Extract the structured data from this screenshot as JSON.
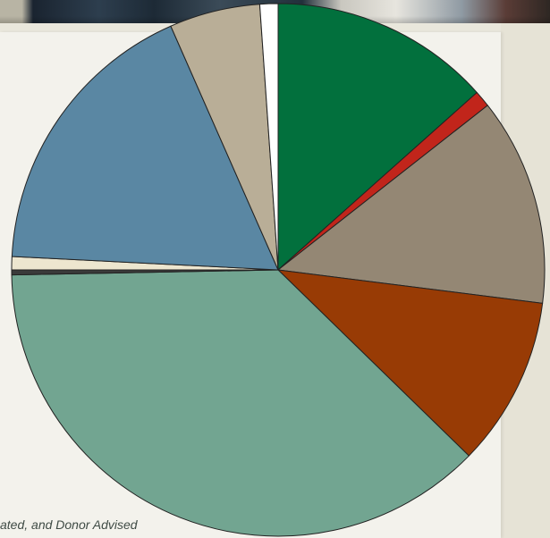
{
  "caption": "ated, and Donor Advised",
  "colors": {
    "background": "#e9e7dc",
    "panel": "#f3f2ec",
    "outline": "#222222"
  },
  "chart_data": {
    "type": "pie",
    "title": "",
    "start": "12 o'clock",
    "direction": "clockwise",
    "slices": [
      {
        "value": 13.4,
        "color": "#02703d"
      },
      {
        "value": 1.0,
        "color": "#c1251b"
      },
      {
        "value": 12.6,
        "color": "#948774"
      },
      {
        "value": 10.3,
        "color": "#983b05"
      },
      {
        "value": 37.4,
        "color": "#72a591"
      },
      {
        "value": 0.3,
        "color": "#3a3a3a"
      },
      {
        "value": 0.8,
        "color": "#ede6cf"
      },
      {
        "value": 17.6,
        "color": "#5a87a3"
      },
      {
        "value": 5.5,
        "color": "#b9ae97"
      },
      {
        "value": 1.1,
        "color": "#ffffff"
      }
    ]
  }
}
